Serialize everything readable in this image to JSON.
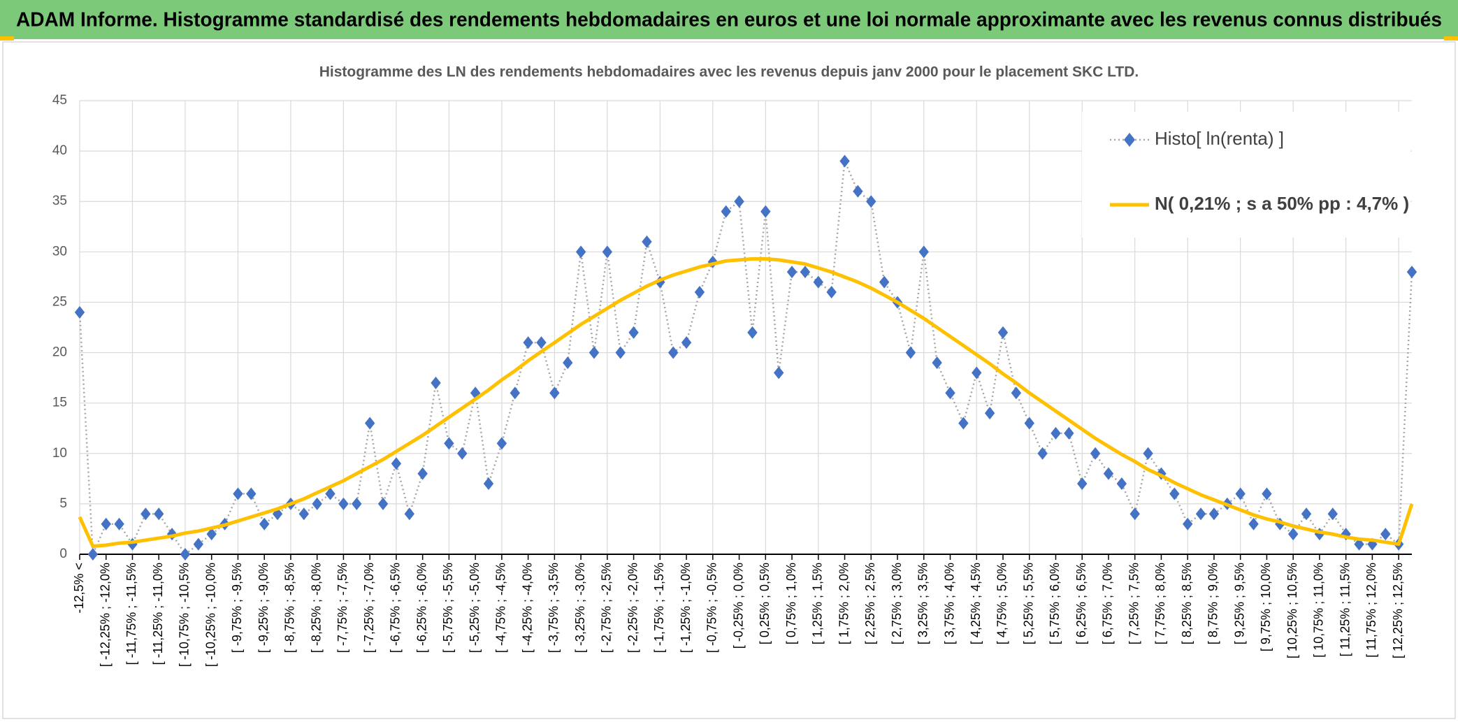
{
  "header": {
    "title": "ADAM Informe. Histogramme standardisé des rendements hebdomadaires en euros et une loi normale approximante avec les revenus connus distribués"
  },
  "chart_data": {
    "type": "line",
    "title": "Histogramme des LN des rendements hebdomadaires avec les revenus depuis janv 2000 pour le placement SKC LTD.",
    "categories": [
      "-12,5% <",
      null,
      "[ -12,25% ; -12,0%",
      null,
      "[ -11,75% ; -11,5%",
      null,
      "[ -11,25% ; -11,0%",
      null,
      "[ -10,75% ; -10,5%",
      null,
      "[ -10,25% ; -10,0%",
      null,
      "[ -9,75% ; -9,5%",
      null,
      "[ -9,25% ; -9,0%",
      null,
      "[ -8,75% ; -8,5%",
      null,
      "[ -8,25% ; -8,0%",
      null,
      "[ -7,75% ; -7,5%",
      null,
      "[ -7,25% ; -7,0%",
      null,
      "[ -6,75% ; -6,5%",
      null,
      "[ -6,25% ; -6,0%",
      null,
      "[ -5,75% ; -5,5%",
      null,
      "[ -5,25% ; -5,0%",
      null,
      "[ -4,75% ; -4,5%",
      null,
      "[ -4,25% ; -4,0%",
      null,
      "[ -3,75% ; -3,5%",
      null,
      "[ -3,25% ; -3,0%",
      null,
      "[ -2,75% ; -2,5%",
      null,
      "[ -2,25% ; -2,0%",
      null,
      "[ -1,75% ; -1,5%",
      null,
      "[ -1,25% ; -1,0%",
      null,
      "[ -0,75% ; -0,5%",
      null,
      "[ -0,25% ; 0,0%",
      null,
      "[ 0,25% ; 0,5%",
      null,
      "[ 0,75% ; 1,0%",
      null,
      "[ 1,25% ; 1,5%",
      null,
      "[ 1,75% ; 2,0%",
      null,
      "[ 2,25% ; 2,5%",
      null,
      "[ 2,75% ; 3,0%",
      null,
      "[ 3,25% ; 3,5%",
      null,
      "[ 3,75% ; 4,0%",
      null,
      "[ 4,25% ; 4,5%",
      null,
      "[ 4,75% ; 5,0%",
      null,
      "[ 5,25% ; 5,5%",
      null,
      "[ 5,75% ; 6,0%",
      null,
      "[ 6,25% ; 6,5%",
      null,
      "[ 6,75% ; 7,0%",
      null,
      "[ 7,25% ; 7,5%",
      null,
      "[ 7,75% ; 8,0%",
      null,
      "[ 8,25% ; 8,5%",
      null,
      "[ 8,75% ; 9,0%",
      null,
      "[ 9,25% ; 9,5%",
      null,
      "[ 9,75% ; 10,0%",
      null,
      "[ 10,25% ; 10,5%",
      null,
      "[ 10,75% ; 11,0%",
      null,
      "[ 11,25% ; 11,5%",
      null,
      "[ 11,75% ; 12,0%",
      null,
      "[ 12,25% ; 12,5%",
      null
    ],
    "series": [
      {
        "name": "Histo[ ln(renta) ]",
        "color": "#4472c4",
        "line_color": "#a6a6a6",
        "style": "dotted-markers",
        "values": [
          24,
          0,
          3,
          3,
          1,
          4,
          4,
          2,
          0,
          1,
          2,
          3,
          6,
          6,
          3,
          4,
          5,
          4,
          5,
          6,
          5,
          5,
          13,
          5,
          9,
          4,
          8,
          17,
          11,
          10,
          16,
          7,
          11,
          16,
          21,
          21,
          16,
          19,
          30,
          20,
          30,
          20,
          22,
          31,
          27,
          20,
          21,
          26,
          29,
          34,
          35,
          22,
          34,
          18,
          28,
          28,
          27,
          26,
          39,
          36,
          35,
          27,
          25,
          20,
          30,
          19,
          16,
          13,
          18,
          14,
          22,
          16,
          13,
          10,
          12,
          12,
          7,
          10,
          8,
          7,
          4,
          10,
          8,
          6,
          3,
          4,
          4,
          5,
          6,
          3,
          6,
          3,
          2,
          4,
          2,
          4,
          2,
          1,
          1,
          2,
          1,
          28
        ]
      },
      {
        "name": "N( 0,21% ; s a 50% pp : 4,7% )",
        "color": "#ffc000",
        "style": "solid",
        "values": [
          3.7,
          0.8,
          0.9,
          1.1,
          1.2,
          1.4,
          1.6,
          1.8,
          2.1,
          2.3,
          2.6,
          2.9,
          3.3,
          3.7,
          4.1,
          4.5,
          5.0,
          5.5,
          6.1,
          6.7,
          7.3,
          8.0,
          8.7,
          9.4,
          10.2,
          11.0,
          11.8,
          12.7,
          13.6,
          14.5,
          15.4,
          16.3,
          17.3,
          18.2,
          19.2,
          20.1,
          21.0,
          21.9,
          22.8,
          23.6,
          24.4,
          25.2,
          25.9,
          26.6,
          27.2,
          27.7,
          28.1,
          28.5,
          28.8,
          29.1,
          29.2,
          29.3,
          29.3,
          29.2,
          29.0,
          28.8,
          28.4,
          28.0,
          27.5,
          27.0,
          26.4,
          25.7,
          25.0,
          24.2,
          23.4,
          22.5,
          21.6,
          20.7,
          19.8,
          18.9,
          17.9,
          17.0,
          16.0,
          15.1,
          14.2,
          13.3,
          12.4,
          11.5,
          10.7,
          9.9,
          9.2,
          8.4,
          7.8,
          7.1,
          6.5,
          5.9,
          5.4,
          4.9,
          4.4,
          3.9,
          3.5,
          3.2,
          2.8,
          2.5,
          2.2,
          2.0,
          1.7,
          1.5,
          1.4,
          1.2,
          1.0,
          5.0
        ]
      }
    ],
    "ylim": [
      0,
      45
    ],
    "yticks": [
      0,
      5,
      10,
      15,
      20,
      25,
      30,
      35,
      40,
      45
    ],
    "grid": true,
    "legend": "top-right"
  }
}
